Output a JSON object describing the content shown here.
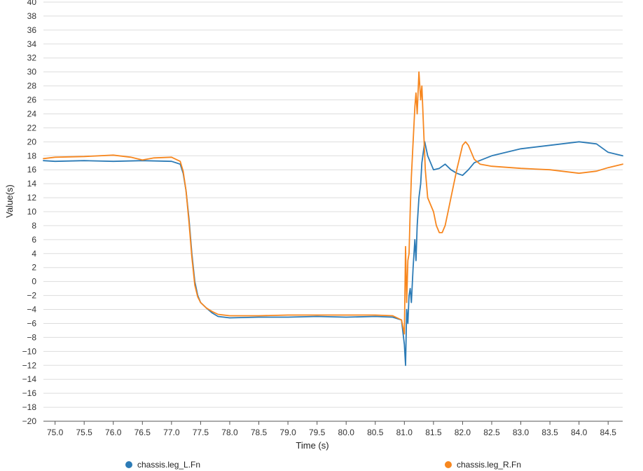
{
  "chart_data": {
    "type": "line",
    "xlabel": "Time (s)",
    "ylabel": "Value(s)",
    "xlim": [
      74.8,
      84.75
    ],
    "ylim": [
      -20,
      40
    ],
    "x_ticks": [
      "75.0",
      "75.5",
      "76.0",
      "76.5",
      "77.0",
      "77.5",
      "78.0",
      "78.5",
      "79.0",
      "79.5",
      "80.0",
      "80.5",
      "81.0",
      "81.5",
      "82.0",
      "82.5",
      "83.0",
      "83.5",
      "84.0",
      "84.5"
    ],
    "y_ticks": [
      "40",
      "38",
      "36",
      "34",
      "32",
      "30",
      "28",
      "26",
      "24",
      "22",
      "20",
      "18",
      "16",
      "14",
      "12",
      "10",
      "8",
      "6",
      "4",
      "2",
      "0",
      "−2",
      "−4",
      "−6",
      "−8",
      "−10",
      "−12",
      "−14",
      "−16",
      "−18",
      "−20"
    ],
    "grid": true,
    "legend_position": "bottom",
    "series": [
      {
        "name": "chassis.leg_L.Fn",
        "color": "#2c7bb6",
        "x": [
          74.8,
          75.0,
          75.5,
          76.0,
          76.5,
          77.0,
          77.15,
          77.2,
          77.25,
          77.3,
          77.35,
          77.4,
          77.45,
          77.5,
          77.6,
          77.7,
          77.8,
          78.0,
          78.5,
          79.0,
          79.5,
          80.0,
          80.5,
          80.8,
          80.95,
          81.0,
          81.02,
          81.04,
          81.06,
          81.08,
          81.1,
          81.12,
          81.15,
          81.18,
          81.2,
          81.22,
          81.25,
          81.28,
          81.3,
          81.35,
          81.4,
          81.5,
          81.6,
          81.7,
          81.8,
          81.9,
          82.0,
          82.1,
          82.2,
          82.5,
          83.0,
          83.5,
          84.0,
          84.3,
          84.5,
          84.75
        ],
        "y": [
          17.3,
          17.2,
          17.3,
          17.2,
          17.3,
          17.2,
          16.8,
          15.5,
          13,
          9,
          4,
          0,
          -2,
          -3,
          -3.8,
          -4.5,
          -5,
          -5.2,
          -5.1,
          -5.1,
          -5.0,
          -5.1,
          -5.0,
          -5.1,
          -5.5,
          -9,
          -12,
          -4,
          -6,
          -2,
          -1,
          -3,
          2,
          6,
          3,
          8,
          12,
          14,
          17,
          20,
          18,
          16,
          16.2,
          16.8,
          16,
          15.5,
          15.2,
          16,
          17,
          18,
          19,
          19.5,
          20,
          19.7,
          18.5,
          18
        ]
      },
      {
        "name": "chassis.leg_R.Fn",
        "color": "#f7871f",
        "x": [
          74.8,
          75.0,
          75.5,
          76.0,
          76.3,
          76.5,
          76.7,
          77.0,
          77.15,
          77.2,
          77.25,
          77.3,
          77.35,
          77.4,
          77.45,
          77.5,
          77.6,
          77.7,
          77.8,
          78.0,
          78.5,
          79.0,
          79.5,
          80.0,
          80.5,
          80.8,
          80.95,
          81.0,
          81.02,
          81.04,
          81.06,
          81.08,
          81.1,
          81.12,
          81.15,
          81.18,
          81.2,
          81.22,
          81.25,
          81.28,
          81.3,
          81.33,
          81.36,
          81.4,
          81.45,
          81.5,
          81.55,
          81.6,
          81.65,
          81.7,
          81.75,
          81.8,
          81.9,
          82.0,
          82.05,
          82.1,
          82.2,
          82.3,
          82.5,
          83.0,
          83.5,
          84.0,
          84.3,
          84.5,
          84.75
        ],
        "y": [
          17.6,
          17.8,
          17.9,
          18.1,
          17.8,
          17.4,
          17.7,
          17.8,
          17.2,
          15.8,
          13,
          8.5,
          3.5,
          -0.5,
          -2.2,
          -3,
          -3.8,
          -4.3,
          -4.7,
          -4.9,
          -4.9,
          -4.8,
          -4.8,
          -4.8,
          -4.8,
          -4.9,
          -5.5,
          -7.5,
          5,
          -3,
          3,
          4,
          10,
          15,
          20,
          25,
          27,
          24,
          30,
          26,
          28,
          22,
          16,
          12,
          11,
          10,
          8,
          7,
          7,
          8,
          10,
          12,
          16,
          19.5,
          20,
          19.5,
          17.5,
          16.8,
          16.5,
          16.2,
          16,
          15.5,
          15.8,
          16.3,
          16.8
        ]
      }
    ]
  }
}
